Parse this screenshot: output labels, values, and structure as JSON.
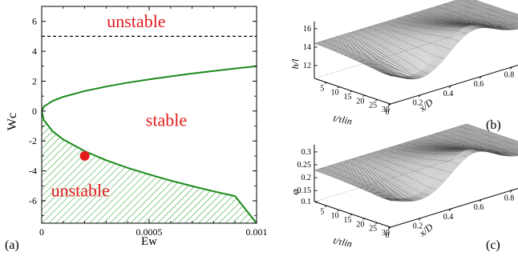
{
  "chart_data": [
    {
      "type": "line",
      "panel_label": "(a)",
      "xlabel": "Ew",
      "ylabel": "Wc",
      "xlim": [
        0,
        0.001
      ],
      "ylim": [
        -7.5,
        7
      ],
      "xticks": [
        "0",
        "0.0005",
        "0.001"
      ],
      "yticks": [
        "6",
        "4",
        "2",
        "0",
        "-2",
        "-4",
        "-6"
      ],
      "grid": false,
      "series": [
        {
          "style": "solid-green",
          "x": [
            0,
            1e-05,
            5e-05,
            0.0001,
            0.0002,
            0.0003,
            0.0004,
            0.0005,
            0.0006,
            0.0007,
            0.0008,
            0.0009,
            0.001
          ],
          "y": [
            0,
            0.3,
            0.67,
            0.95,
            1.34,
            1.64,
            1.9,
            2.12,
            2.32,
            2.51,
            2.68,
            2.85,
            3.0
          ]
        },
        {
          "style": "solid-green",
          "x": [
            0,
            1e-05,
            5e-05,
            0.0001,
            0.0002,
            0.0003,
            0.0004,
            0.0005,
            0.0006,
            0.0007,
            0.0008,
            0.0009,
            0.001
          ],
          "y": [
            0,
            -0.6,
            -1.34,
            -1.9,
            -2.68,
            -3.29,
            -3.8,
            -4.24,
            -4.65,
            -5.02,
            -5.37,
            -5.69,
            -7.5
          ]
        },
        {
          "style": "dashed-black",
          "x": [
            0,
            0.001
          ],
          "y": [
            5,
            5
          ]
        }
      ],
      "points": [
        {
          "x": 0.0002,
          "y": -3.0,
          "color": "#e31a1c"
        }
      ],
      "regions": [
        {
          "label": "unstable",
          "anchor": {
            "x": 0.00044,
            "y": 5.6
          }
        },
        {
          "label": "stable",
          "anchor": {
            "x": 0.00058,
            "y": -1.0
          }
        },
        {
          "label": "unstable",
          "anchor": {
            "x": 0.00018,
            "y": -5.7
          }
        }
      ],
      "hatched_region": "between lower curve and y=-7.5"
    },
    {
      "type": "surface",
      "panel_label": "(b)",
      "zlabel": "h/l",
      "xlabel": "x/D",
      "ylabel": "t/τlin",
      "zticks": [
        "16",
        "14",
        "12"
      ],
      "xticks": [
        "0",
        "0.2",
        "0.4",
        "0.6",
        "0.8",
        "1"
      ],
      "yticks": [
        "5",
        "10",
        "15",
        "20",
        "25",
        "30"
      ]
    },
    {
      "type": "surface",
      "panel_label": "(c)",
      "zlabel": "φ",
      "xlabel": "x/D",
      "ylabel": "t/τlin",
      "zticks": [
        "0.3",
        "0.25",
        "0.2",
        "0.15",
        "0.1"
      ],
      "xticks": [
        "0",
        "0.2",
        "0.4",
        "0.6",
        "0.8",
        "1"
      ],
      "yticks": [
        "5",
        "10",
        "15",
        "20",
        "25",
        "30"
      ]
    }
  ]
}
